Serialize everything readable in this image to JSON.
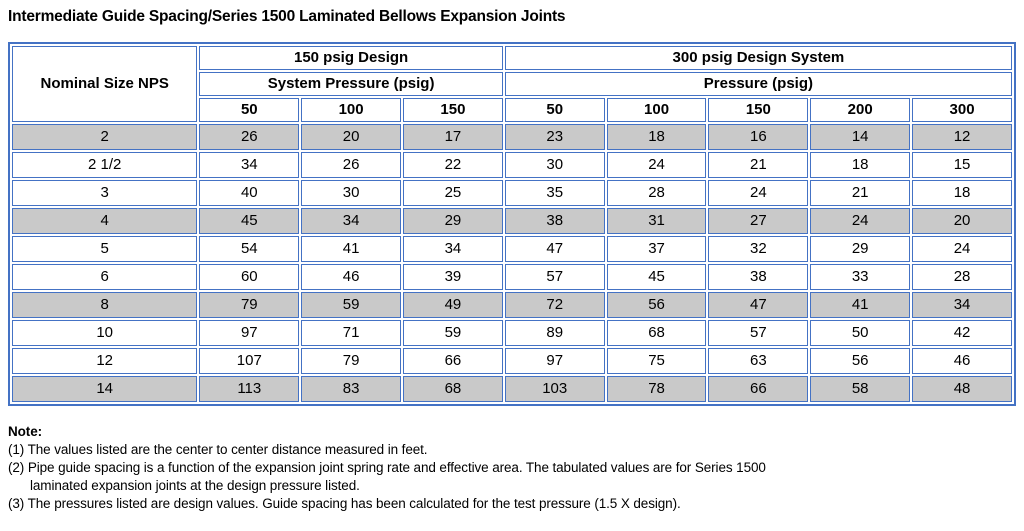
{
  "page_title": "Intermediate Guide Spacing/Series 1500 Laminated Bellows Expansion Joints",
  "colors": {
    "border_blue": "#4472C4",
    "shaded_row_gray": "#C9C9C9"
  },
  "table": {
    "corner_header": "Nominal Size NPS",
    "group_headers": {
      "left": "150 psig Design",
      "right": "300 psig Design System"
    },
    "sub_group_headers": {
      "left": "System Pressure (psig)",
      "right": "Pressure (psig)"
    },
    "pressure_columns": [
      "50",
      "100",
      "150",
      "50",
      "100",
      "150",
      "200",
      "300"
    ],
    "rows": [
      {
        "nps": "2",
        "values": [
          26,
          20,
          17,
          23,
          18,
          16,
          14,
          12
        ],
        "shaded": true
      },
      {
        "nps": "2 1/2",
        "values": [
          34,
          26,
          22,
          30,
          24,
          21,
          18,
          15
        ],
        "shaded": false
      },
      {
        "nps": "3",
        "values": [
          40,
          30,
          25,
          35,
          28,
          24,
          21,
          18
        ],
        "shaded": false
      },
      {
        "nps": "4",
        "values": [
          45,
          34,
          29,
          38,
          31,
          27,
          24,
          20
        ],
        "shaded": true
      },
      {
        "nps": "5",
        "values": [
          54,
          41,
          34,
          47,
          37,
          32,
          29,
          24
        ],
        "shaded": false
      },
      {
        "nps": "6",
        "values": [
          60,
          46,
          39,
          57,
          45,
          38,
          33,
          28
        ],
        "shaded": false
      },
      {
        "nps": "8",
        "values": [
          79,
          59,
          49,
          72,
          56,
          47,
          41,
          34
        ],
        "shaded": true
      },
      {
        "nps": "10",
        "values": [
          97,
          71,
          59,
          89,
          68,
          57,
          50,
          42
        ],
        "shaded": false
      },
      {
        "nps": "12",
        "values": [
          107,
          79,
          66,
          97,
          75,
          63,
          56,
          46
        ],
        "shaded": false
      },
      {
        "nps": "14",
        "values": [
          113,
          83,
          68,
          103,
          78,
          66,
          58,
          48
        ],
        "shaded": true
      }
    ]
  },
  "notes": {
    "heading": "Note:",
    "items": [
      {
        "lines": [
          "(1) The values listed are the center to center distance measured in feet."
        ]
      },
      {
        "lines": [
          "(2) Pipe guide spacing is a function of the expansion joint spring rate and effective area. The tabulated values are for Series 1500",
          "laminated expansion joints at the design pressure listed."
        ]
      },
      {
        "lines": [
          "(3) The pressures listed are design values. Guide spacing has been calculated for the test pressure (1.5 X design)."
        ]
      }
    ]
  }
}
